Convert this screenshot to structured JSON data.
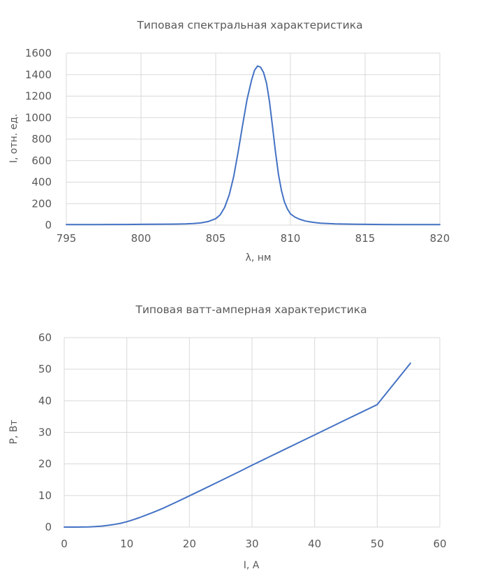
{
  "chart_data": [
    {
      "type": "line",
      "title": "Типовая спектральная характеристика",
      "xlabel": "λ, нм",
      "ylabel": "I, отн. ед.",
      "xlim": [
        795,
        820
      ],
      "ylim": [
        0,
        1600
      ],
      "xticks": [
        "795",
        "800",
        "805",
        "810",
        "815",
        "820"
      ],
      "yticks": [
        "0",
        "200",
        "400",
        "600",
        "800",
        "1000",
        "1200",
        "1400",
        "1600"
      ],
      "grid": true,
      "series_color": "#4472c4",
      "series": [
        {
          "x": [
            795,
            796,
            797,
            798,
            799,
            800,
            801,
            802,
            803,
            803.5,
            804,
            804.5,
            805,
            805.3,
            805.6,
            805.9,
            806.2,
            806.5,
            806.8,
            807.1,
            807.4,
            807.6,
            807.8,
            808.0,
            808.2,
            808.4,
            808.6,
            808.8,
            809.0,
            809.2,
            809.4,
            809.6,
            809.8,
            810.0,
            810.3,
            810.6,
            811.0,
            811.5,
            812,
            813,
            814,
            815,
            816,
            817,
            818,
            819,
            820
          ],
          "y": [
            5,
            5,
            5,
            6,
            6,
            7,
            8,
            9,
            11,
            14,
            20,
            33,
            60,
            95,
            165,
            280,
            450,
            680,
            930,
            1170,
            1350,
            1440,
            1480,
            1470,
            1420,
            1320,
            1150,
            920,
            680,
            470,
            320,
            215,
            150,
            105,
            75,
            55,
            38,
            26,
            18,
            12,
            9,
            7,
            6,
            5,
            5,
            5,
            5
          ]
        }
      ]
    },
    {
      "type": "line",
      "title": "Типовая ватт-амперная характеристика",
      "xlabel": "I, А",
      "ylabel": "P, Вт",
      "xlim": [
        0,
        60
      ],
      "ylim": [
        0,
        60
      ],
      "xticks": [
        "0",
        "10",
        "20",
        "30",
        "40",
        "50",
        "60"
      ],
      "yticks": [
        "0",
        "10",
        "20",
        "30",
        "40",
        "50",
        "60"
      ],
      "grid": true,
      "series_color": "#4472c4",
      "series": [
        {
          "x": [
            0,
            2,
            4,
            5,
            6,
            7,
            8,
            9,
            10,
            11,
            12,
            13,
            14,
            15,
            16,
            18,
            20,
            22,
            25,
            28,
            30,
            35,
            40,
            45,
            50,
            55.3
          ],
          "y": [
            0,
            0,
            0.05,
            0.15,
            0.3,
            0.55,
            0.85,
            1.2,
            1.7,
            2.3,
            3.0,
            3.75,
            4.5,
            5.3,
            6.15,
            8.0,
            9.9,
            11.8,
            14.7,
            17.6,
            19.6,
            24.4,
            29.2,
            34.0,
            38.8,
            51.9
          ]
        }
      ]
    }
  ]
}
